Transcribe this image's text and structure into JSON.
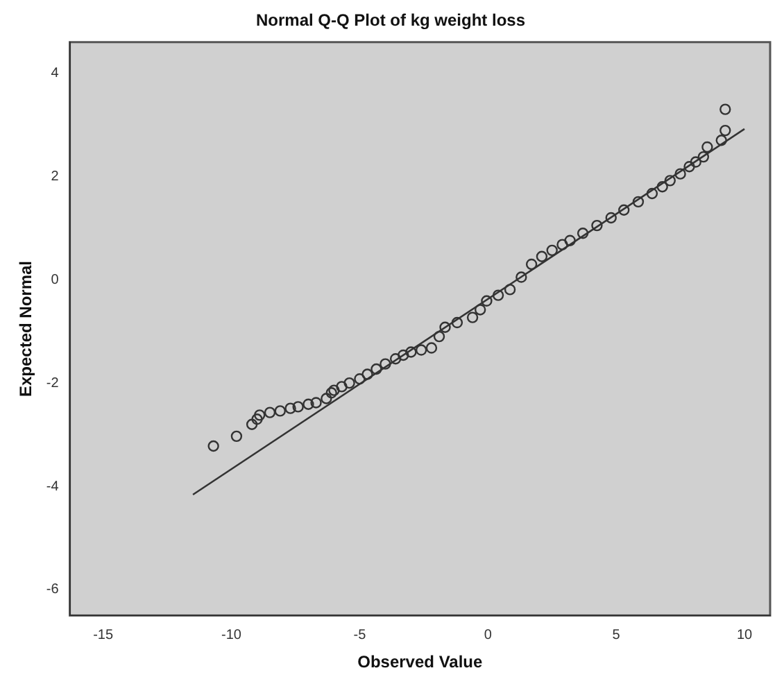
{
  "chart_data": {
    "type": "scatter",
    "title": "Normal Q-Q Plot of kg weight loss",
    "xlabel": "Observed Value",
    "ylabel": "Expected Normal",
    "xlim": [
      -16.3,
      11
    ],
    "ylim": [
      -6.5,
      4.6
    ],
    "xticks": [
      -15,
      -10,
      -5,
      0,
      5,
      10
    ],
    "yticks": [
      -6,
      -4,
      -2,
      0,
      2,
      4
    ],
    "grid": false,
    "legend": false,
    "marker": "circle",
    "series": [
      {
        "color": "#333333",
        "x": [
          -10.7,
          -9.8,
          -9.2,
          -9.0,
          -8.9,
          -8.5,
          -8.1,
          -7.7,
          -7.4,
          -7.0,
          -6.7,
          -6.3,
          -6.1,
          -6.0,
          -5.7,
          -5.4,
          -5.0,
          -4.7,
          -4.35,
          -4.0,
          -3.6,
          -3.3,
          -3.0,
          -2.6,
          -2.2,
          -1.9,
          -1.67,
          -1.2,
          -0.6,
          -0.3,
          -0.05,
          0.4,
          0.86,
          1.3,
          1.7,
          2.1,
          2.5,
          2.9,
          3.2,
          3.7,
          4.25,
          4.8,
          5.3,
          5.86,
          6.4,
          6.8,
          7.1,
          7.5,
          7.85,
          8.1,
          8.4,
          8.55,
          9.1,
          9.25,
          9.25
        ],
        "values": [
          -3.22,
          -3.03,
          -2.8,
          -2.7,
          -2.62,
          -2.57,
          -2.54,
          -2.49,
          -2.46,
          -2.41,
          -2.38,
          -2.3,
          -2.19,
          -2.14,
          -2.07,
          -2.0,
          -1.92,
          -1.83,
          -1.73,
          -1.63,
          -1.53,
          -1.46,
          -1.4,
          -1.36,
          -1.32,
          -1.1,
          -0.92,
          -0.83,
          -0.73,
          -0.58,
          -0.41,
          -0.3,
          -0.19,
          0.05,
          0.3,
          0.45,
          0.57,
          0.68,
          0.76,
          0.9,
          1.05,
          1.2,
          1.35,
          1.51,
          1.67,
          1.8,
          1.92,
          2.05,
          2.19,
          2.28,
          2.38,
          2.57,
          2.7,
          2.89,
          3.3
        ]
      },
      {
        "type": "line",
        "marker": "none",
        "color": "#333333",
        "x": [
          -11.5,
          10.0
        ],
        "values": [
          -4.16,
          2.92
        ]
      }
    ]
  }
}
